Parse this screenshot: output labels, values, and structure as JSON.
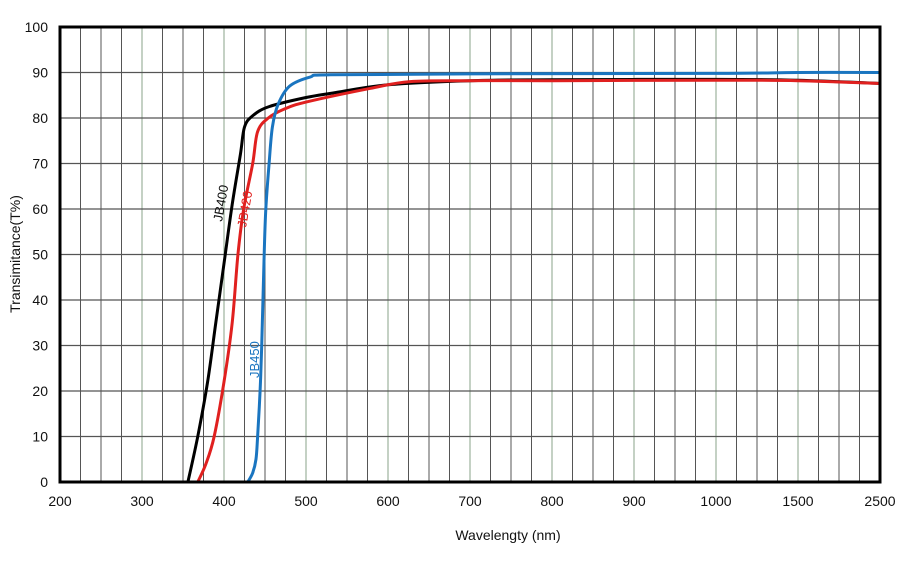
{
  "chart_data": {
    "type": "line",
    "title": "",
    "xlabel": "Wavelengty (nm)",
    "ylabel": "Transimitance(T%)",
    "ylim": [
      0,
      100
    ],
    "xlim": [
      200,
      2500
    ],
    "x_ticks": [
      200,
      300,
      400,
      500,
      600,
      700,
      800,
      900,
      1000,
      1500,
      2500
    ],
    "x_tick_labels": [
      "200",
      "300",
      "400",
      "500",
      "600",
      "700",
      "800",
      "900",
      "1000",
      "1500",
      "2500"
    ],
    "y_ticks": [
      0,
      10,
      20,
      30,
      40,
      50,
      60,
      70,
      80,
      90,
      100
    ],
    "y_tick_labels": [
      "0",
      "10",
      "20",
      "30",
      "40",
      "50",
      "60",
      "70",
      "80",
      "90",
      "100"
    ],
    "grid": true,
    "series": [
      {
        "name": "JB400",
        "color": "#000000",
        "x": [
          356,
          368,
          380,
          390,
          400,
          410,
          420,
          425,
          435,
          455,
          500,
          533,
          600,
          700,
          800,
          1000,
          1500,
          2500
        ],
        "y": [
          0,
          10,
          22,
          35,
          48,
          61,
          72,
          78,
          80.5,
          82.5,
          84.5,
          85.5,
          87.3,
          88.2,
          88.4,
          88.5,
          88.3,
          87.6
        ]
      },
      {
        "name": "JB420",
        "color": "#e0201f",
        "x": [
          368,
          378,
          388,
          400,
          410,
          417,
          424,
          435,
          441,
          454,
          474,
          500,
          578,
          627,
          700,
          800,
          1000,
          1500,
          2500
        ],
        "y": [
          0,
          4,
          10,
          22,
          35,
          50,
          60,
          70,
          77,
          80,
          82,
          83.5,
          86.5,
          88,
          88.2,
          88.2,
          88.3,
          88.2,
          87.6
        ]
      },
      {
        "name": "JB450",
        "color": "#1a75c0",
        "x": [
          429,
          435,
          439,
          441,
          444,
          446,
          449,
          451,
          455,
          459,
          466,
          480,
          505,
          530,
          700,
          1000,
          1500,
          2500
        ],
        "y": [
          0,
          2,
          5,
          10,
          20,
          30,
          50,
          60,
          70,
          78,
          83,
          87,
          89,
          89.5,
          89.7,
          89.8,
          90,
          90
        ]
      }
    ]
  }
}
